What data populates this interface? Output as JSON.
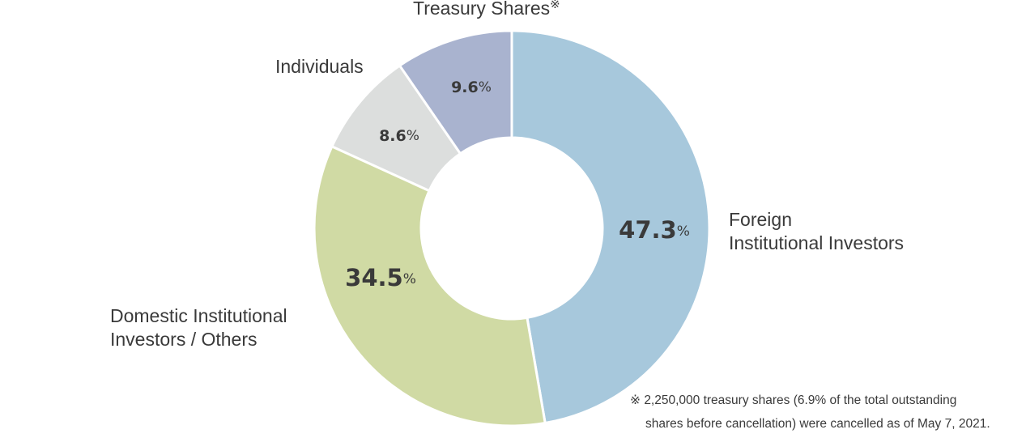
{
  "chart_data": {
    "type": "pie",
    "variant": "donut",
    "title": "",
    "start": "top",
    "direction": "clockwise",
    "unit_symbol": "%",
    "slices": [
      {
        "id": "foreign",
        "label_lines": [
          "Foreign",
          "Institutional Investors"
        ],
        "value": 47.3,
        "value_text": "47.3",
        "color": "#a7c8dc",
        "size": "big",
        "mark": ""
      },
      {
        "id": "domestic",
        "label_lines": [
          "Domestic Institutional",
          "Investors / Others"
        ],
        "value": 34.5,
        "value_text": "34.5",
        "color": "#d0daa4",
        "size": "big",
        "mark": ""
      },
      {
        "id": "individuals",
        "label_lines": [
          "Individuals"
        ],
        "value": 8.6,
        "value_text": "8.6",
        "color": "#dcdedd",
        "size": "small",
        "mark": ""
      },
      {
        "id": "treasury",
        "label_lines": [
          "Treasury Shares"
        ],
        "value": 9.6,
        "value_text": "9.6",
        "color": "#a9b3cf",
        "size": "small",
        "mark": "※"
      }
    ]
  },
  "footnote": {
    "mark": "※",
    "line1": "2,250,000 treasury shares (6.9% of the total outstanding",
    "line2": "shares before cancellation) were cancelled as of May 7, 2021."
  }
}
